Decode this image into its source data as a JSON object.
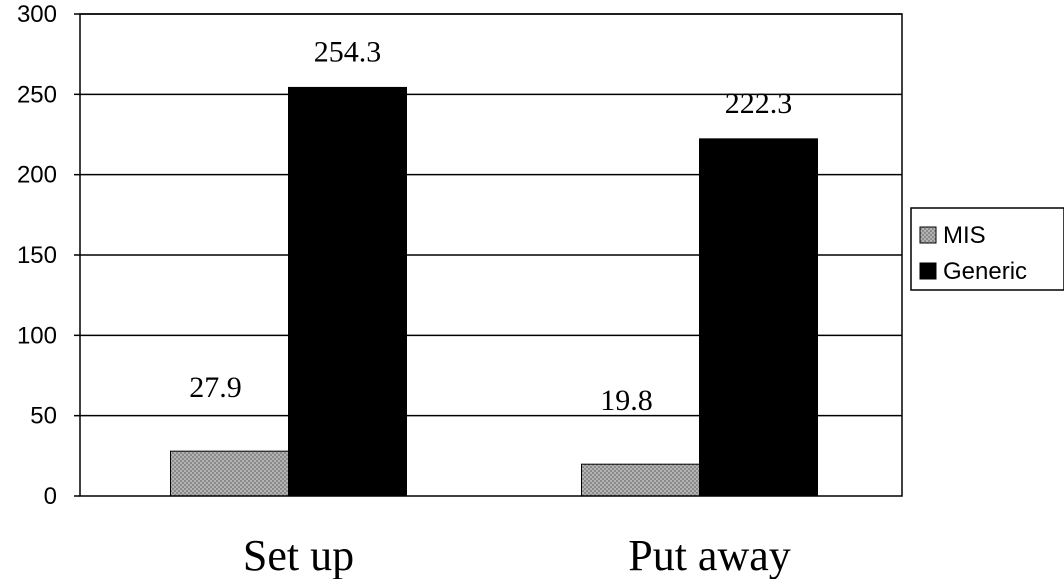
{
  "chart_data": {
    "type": "bar",
    "title": "",
    "xlabel": "",
    "ylabel": "",
    "categories": [
      "Set up",
      "Put away"
    ],
    "series": [
      {
        "name": "MIS",
        "values": [
          27.9,
          19.8
        ],
        "color": "#a8a8a8",
        "labels": [
          "27.9",
          "19.8"
        ]
      },
      {
        "name": "Generic",
        "values": [
          254.3,
          222.3
        ],
        "color": "#000000",
        "labels": [
          "254.3",
          "222.3"
        ]
      }
    ],
    "ylim": [
      0,
      300
    ],
    "yticks": [
      0,
      50,
      100,
      150,
      200,
      250,
      300
    ],
    "ytick_labels": [
      "0",
      "50",
      "100",
      "150",
      "200",
      "250",
      "300"
    ],
    "grid": "horizontal",
    "legend": "right"
  }
}
